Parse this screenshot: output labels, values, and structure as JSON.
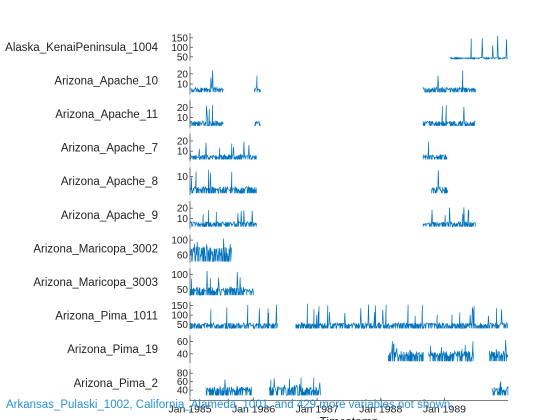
{
  "chart_data": {
    "type": "stacked-line",
    "xlabel": "Timestamp",
    "x_ticks": [
      "Jan 1985",
      "Jan 1986",
      "Jan 1987",
      "Jan 1988",
      "Jan 1989"
    ],
    "x_range": [
      "1985-01-01",
      "1990-01-01"
    ],
    "color": "#0072BD",
    "footnote": "Arkansas_Pulaski_1002, California_Alameda_1001, and 429 more variables not shown.",
    "series": [
      {
        "name": "Alaska_KenaiPeninsula_1004",
        "yticks": [
          150,
          100,
          50
        ],
        "ylim": [
          30,
          175
        ],
        "segments": [
          [
            "1989-02-01",
            "1989-12-31"
          ]
        ],
        "baseline": 40,
        "level": 45,
        "peak": 170
      },
      {
        "name": "Arizona_Apache_10",
        "yticks": [
          20,
          10
        ],
        "ylim": [
          0,
          27
        ],
        "segments": [
          [
            "1985-01-01",
            "1985-07-15"
          ],
          [
            "1986-01-05",
            "1986-02-10"
          ],
          [
            "1988-09-01",
            "1989-07-01"
          ]
        ],
        "baseline": 2,
        "level": 6,
        "peak": 24
      },
      {
        "name": "Arizona_Apache_11",
        "yticks": [
          20,
          10
        ],
        "ylim": [
          0,
          27
        ],
        "segments": [
          [
            "1985-01-01",
            "1985-07-15"
          ],
          [
            "1986-01-05",
            "1986-02-10"
          ],
          [
            "1988-09-01",
            "1989-07-01"
          ]
        ],
        "baseline": 2,
        "level": 6,
        "peak": 24
      },
      {
        "name": "Arizona_Apache_7",
        "yticks": [
          20,
          10
        ],
        "ylim": [
          0,
          27
        ],
        "segments": [
          [
            "1985-01-01",
            "1986-01-20"
          ],
          [
            "1988-09-01",
            "1989-01-15"
          ]
        ],
        "baseline": 2,
        "level": 6,
        "peak": 22
      },
      {
        "name": "Arizona_Apache_8",
        "yticks": [
          10
        ],
        "ylim": [
          0,
          15
        ],
        "segments": [
          [
            "1985-01-01",
            "1986-01-20"
          ],
          [
            "1988-10-20",
            "1989-01-20"
          ]
        ],
        "baseline": 1,
        "level": 4,
        "peak": 14
      },
      {
        "name": "Arizona_Apache_9",
        "yticks": [
          20,
          10
        ],
        "ylim": [
          0,
          27
        ],
        "segments": [
          [
            "1985-01-01",
            "1986-01-20"
          ],
          [
            "1988-09-01",
            "1989-07-01"
          ]
        ],
        "baseline": 2,
        "level": 6,
        "peak": 22
      },
      {
        "name": "Arizona_Maricopa_3002",
        "yticks": [
          100,
          60
        ],
        "ylim": [
          40,
          115
        ],
        "segments": [
          [
            "1985-01-01",
            "1985-09-01"
          ]
        ],
        "baseline": 42,
        "level": 75,
        "peak": 105
      },
      {
        "name": "Arizona_Maricopa_3003",
        "yticks": [
          100,
          50
        ],
        "ylim": [
          30,
          120
        ],
        "segments": [
          [
            "1985-01-01",
            "1986-01-01"
          ]
        ],
        "baseline": 32,
        "level": 55,
        "peak": 115
      },
      {
        "name": "Arizona_Pima_1011",
        "yticks": [
          150,
          100,
          50
        ],
        "ylim": [
          25,
          170
        ],
        "segments": [
          [
            "1985-01-01",
            "1986-05-20"
          ],
          [
            "1986-09-01",
            "1990-01-01"
          ]
        ],
        "baseline": 30,
        "level": 55,
        "peak": 160
      },
      {
        "name": "Arizona_Pima_19",
        "yticks": [
          60,
          40
        ],
        "ylim": [
          25,
          70
        ],
        "segments": [
          [
            "1988-02-15",
            "1988-09-01"
          ],
          [
            "1988-10-01",
            "1989-06-20"
          ],
          [
            "1989-09-15",
            "1990-01-01"
          ]
        ],
        "baseline": 28,
        "level": 42,
        "peak": 65
      },
      {
        "name": "Arizona_Pima_2",
        "yticks": [
          80,
          60,
          40
        ],
        "ylim": [
          25,
          90
        ],
        "segments": [
          [
            "1985-04-01",
            "1985-12-20"
          ],
          [
            "1986-04-01",
            "1987-01-20"
          ],
          [
            "1989-10-01",
            "1990-01-01"
          ]
        ],
        "baseline": 28,
        "level": 45,
        "peak": 70
      }
    ]
  }
}
